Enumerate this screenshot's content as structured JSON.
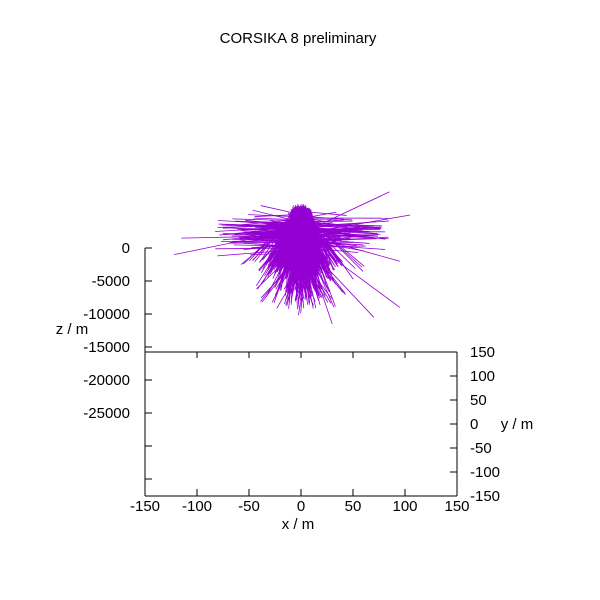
{
  "chart_data": {
    "type": "line",
    "projection": "3d",
    "title": "CORSIKA 8 preliminary",
    "xlabel": "x / m",
    "ylabel": "y / m",
    "zlabel": "z / m",
    "xlim": [
      -150,
      150
    ],
    "ylim": [
      -150,
      150
    ],
    "zlim": [
      -35000,
      0
    ],
    "x_ticks": [
      "-150",
      "-100",
      "-50",
      "0",
      "50",
      "100",
      "150"
    ],
    "y_ticks": [
      "150",
      "100",
      "50",
      "0",
      "-50",
      "-100",
      "-150"
    ],
    "z_ticks": [
      "0",
      "-5000",
      "-10000",
      "-15000",
      "-20000",
      "-25000"
    ],
    "track_color": "#9400d3",
    "grid": false,
    "legend": "none",
    "particle_tracks": {
      "note": "bundle of shower particle trajectories converging near x=0, y=0, z=0; rendered procedurally",
      "approx_track_count": 700,
      "central_core": {
        "x": [
          -50,
          50
        ],
        "z": [
          -6000,
          0
        ]
      },
      "outliers": [
        {
          "x": -122,
          "y": 0,
          "z": -1000
        },
        {
          "x": -115,
          "y": 0,
          "z": 1500
        },
        {
          "x": 105,
          "y": 0,
          "z": 5000
        },
        {
          "x": 95,
          "y": 0,
          "z": -2000
        },
        {
          "x": 95,
          "y": 0,
          "z": -9000
        },
        {
          "x": 70,
          "y": 0,
          "z": -10500
        },
        {
          "x": 30,
          "y": 0,
          "z": -11500
        },
        {
          "x": 85,
          "y": 0,
          "z": 8500
        }
      ]
    }
  }
}
